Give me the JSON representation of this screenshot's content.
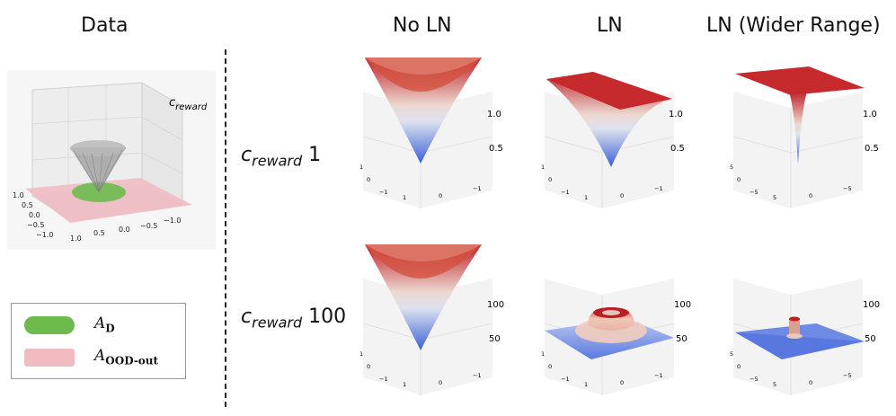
{
  "titles": {
    "data": "Data",
    "no_ln": "No LN",
    "ln": "LN",
    "ln_wide": "LN (Wider Range)"
  },
  "rows": [
    {
      "var": "c",
      "sub": "reward",
      "value": "1"
    },
    {
      "var": "c",
      "sub": "reward",
      "value": "100"
    }
  ],
  "data_panel": {
    "zlabel": "c",
    "zlabel_sub": "reward",
    "ticks": [
      "1.0",
      "0.5",
      "0.0",
      "−0.5",
      "−1.0",
      "1.0",
      "0.5",
      "0.0",
      "−0.5",
      "−1.0"
    ]
  },
  "z_ticks": {
    "row1": [
      "1.0",
      "0.5"
    ],
    "row2": [
      "100",
      "50"
    ]
  },
  "axis_ticks": {
    "narrow": [
      "1",
      "0",
      "−1",
      "1",
      "0",
      "−1"
    ],
    "wide": [
      "5",
      "0",
      "−5",
      "5",
      "0",
      "−5"
    ]
  },
  "legend": {
    "items": [
      {
        "symbol": "A",
        "sub": "D",
        "color": "#6cbb4c"
      },
      {
        "symbol": "A",
        "sub": "OOD-out",
        "color": "#f0bcc2"
      }
    ]
  },
  "colors": {
    "surface_high": "#c0202a",
    "surface_mid": "#e8e2df",
    "surface_low": "#3a5fd6",
    "cone": "#888888",
    "in_dist": "#6cbb4c",
    "ood": "#f0bcc2"
  }
}
